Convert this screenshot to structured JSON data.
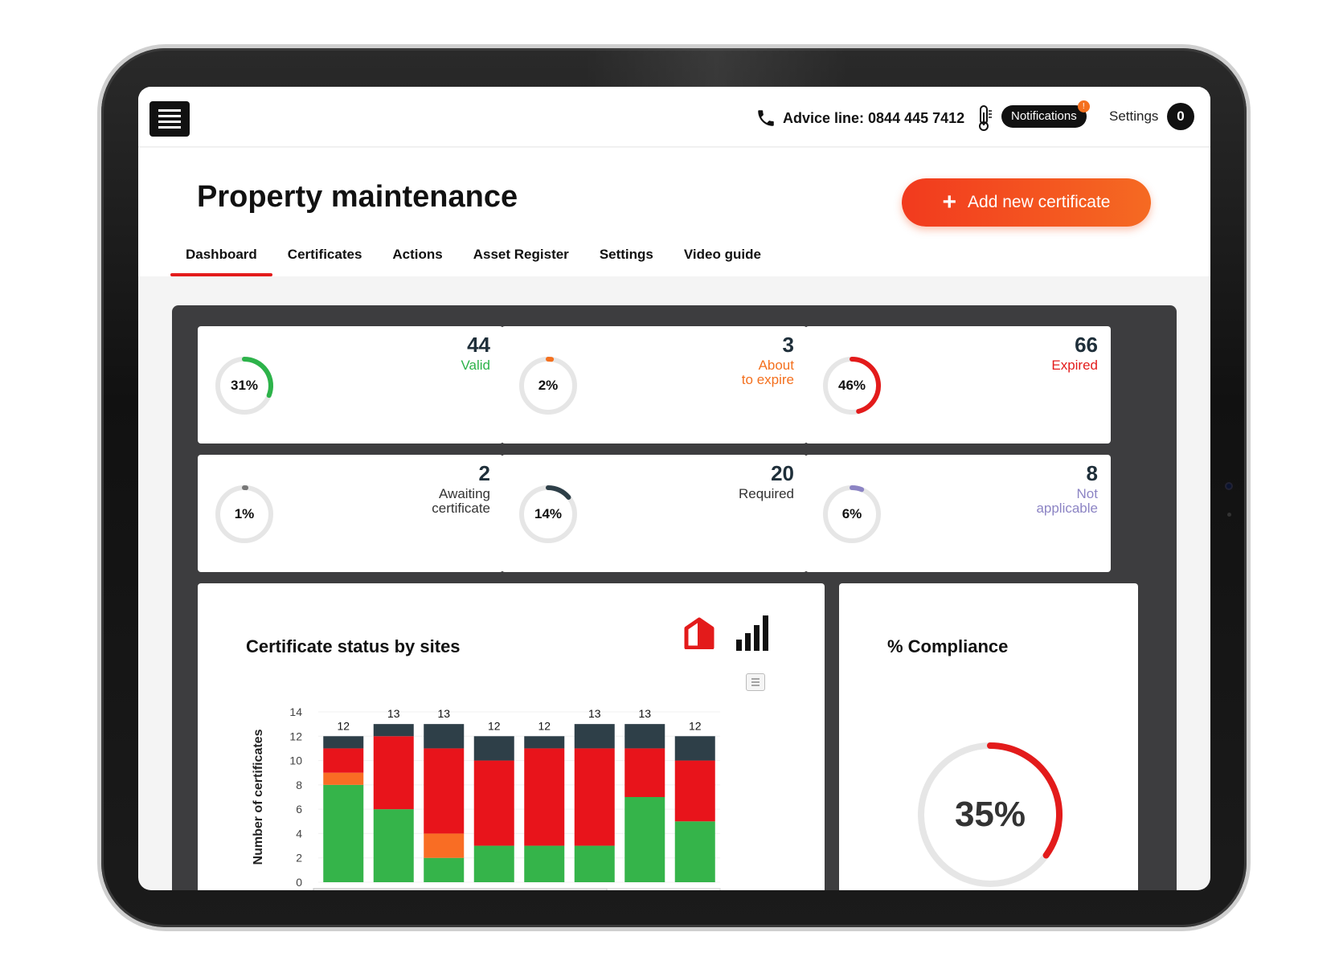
{
  "topbar": {
    "advice_line": "Advice line: 0844 445 7412",
    "notifications_label": "Notifications",
    "notifications_badge": "!",
    "settings_label": "Settings",
    "settings_count": "0"
  },
  "header": {
    "title": "Property maintenance",
    "add_button_label": "Add new certificate",
    "tabs": [
      "Dashboard",
      "Certificates",
      "Actions",
      "Asset Register",
      "Settings",
      "Video guide"
    ],
    "active_tab": "Dashboard"
  },
  "cards": [
    {
      "count": "44",
      "label": "Valid",
      "pct": "31%",
      "fraction": 0.31,
      "color": "#2db34a"
    },
    {
      "count": "3",
      "label": "About\nto expire",
      "pct": "2%",
      "fraction": 0.02,
      "color": "#f4701e"
    },
    {
      "count": "66",
      "label": "Expired",
      "pct": "46%",
      "fraction": 0.46,
      "color": "#e31b1b"
    },
    {
      "count": "2",
      "label": "Awaiting\ncertificate",
      "pct": "1%",
      "fraction": 0.01,
      "color": "#777777"
    },
    {
      "count": "20",
      "label": "Required",
      "pct": "14%",
      "fraction": 0.14,
      "color": "#2e3f48"
    },
    {
      "count": "8",
      "label": "Not\napplicable",
      "pct": "6%",
      "fraction": 0.06,
      "color": "#8c84c4"
    }
  ],
  "card_label_colors": [
    "#2db34a",
    "#f4701e",
    "#e31b1b",
    "#333333",
    "#333333",
    "#8c84c4"
  ],
  "chart_card": {
    "title": "Certificate status by sites"
  },
  "chart_data": {
    "type": "bar",
    "stacked": true,
    "ylabel": "Number of certificates",
    "xlabel": "",
    "ylim": [
      0,
      14
    ],
    "yticks": [
      0,
      2,
      4,
      6,
      8,
      10,
      12,
      14
    ],
    "categories": [
      "",
      "",
      "",
      "",
      "",
      "",
      "",
      ""
    ],
    "totals": [
      12,
      13,
      13,
      12,
      12,
      13,
      13,
      12
    ],
    "series": [
      {
        "color": "#35b44a",
        "values": [
          8,
          6,
          2,
          3,
          3,
          3,
          7,
          5
        ]
      },
      {
        "color": "#f96d24",
        "values": [
          1,
          0,
          2,
          0,
          0,
          0,
          0,
          0
        ]
      },
      {
        "color": "#e8141b",
        "values": [
          2,
          6,
          7,
          7,
          8,
          8,
          4,
          5
        ]
      },
      {
        "color": "#2e3f48",
        "values": [
          1,
          1,
          2,
          2,
          1,
          2,
          2,
          2
        ]
      }
    ]
  },
  "compliance": {
    "title": "% Compliance",
    "pct": "35%",
    "fraction": 0.35,
    "color": "#e31b1b"
  }
}
